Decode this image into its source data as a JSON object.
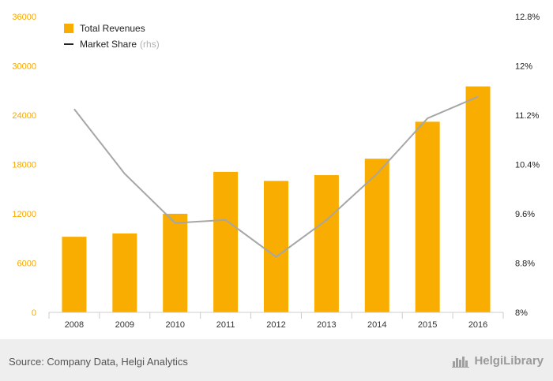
{
  "chart_data": {
    "type": "bar",
    "categories": [
      "2008",
      "2009",
      "2010",
      "2011",
      "2012",
      "2013",
      "2014",
      "2015",
      "2016"
    ],
    "series": [
      {
        "name": "Total Revenues",
        "type": "bar",
        "axis": "left",
        "color": "#f9ad00",
        "values": [
          9200,
          9600,
          12000,
          17100,
          16000,
          16700,
          18700,
          23200,
          27500
        ]
      },
      {
        "name": "Market Share",
        "type": "line",
        "axis": "right",
        "color": "#a6a6a6",
        "values": [
          11.3,
          10.25,
          9.45,
          9.5,
          8.9,
          9.5,
          10.25,
          11.15,
          11.5
        ]
      }
    ],
    "y_left": {
      "ylim": [
        0,
        36000
      ],
      "ticks": [
        0,
        6000,
        12000,
        18000,
        24000,
        30000,
        36000
      ],
      "tick_labels": [
        "0",
        "6000",
        "12000",
        "18000",
        "24000",
        "30000",
        "36000"
      ]
    },
    "y_right": {
      "ylim": [
        8,
        12.8
      ],
      "ticks": [
        8,
        8.8,
        9.6,
        10.4,
        11.2,
        12,
        12.8
      ],
      "tick_labels": [
        "8%",
        "8.8%",
        "9.6%",
        "10.4%",
        "11.2%",
        "12%",
        "12.8%"
      ]
    },
    "legend": {
      "position": "top-left",
      "items": [
        {
          "label": "Total Revenues",
          "marker": "square",
          "color": "#f9ad00"
        },
        {
          "label": "Market Share",
          "note": "(rhs)",
          "marker": "line",
          "color": "#222222"
        }
      ]
    },
    "grid": false
  },
  "footer": {
    "source": "Source: Company Data, Helgi Analytics",
    "brand": "HelgiLibrary"
  }
}
